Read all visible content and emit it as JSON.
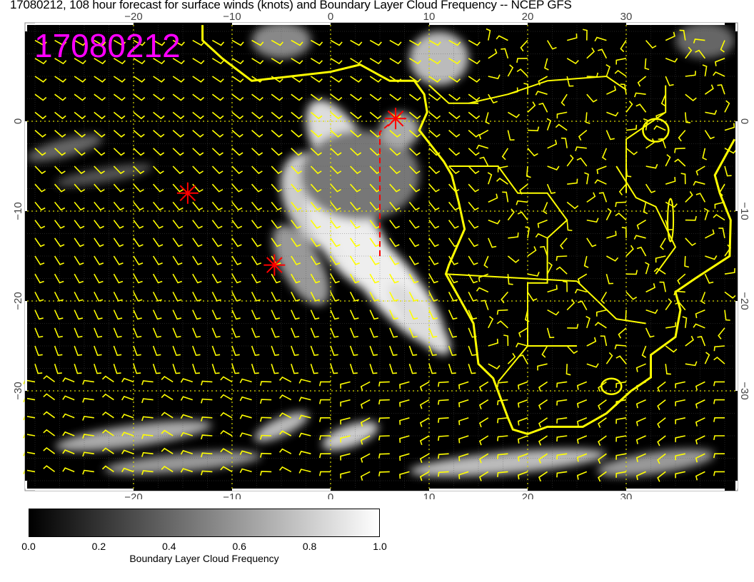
{
  "title": "17080212, 108 hour forecast for surface winds (knots) and Boundary Layer Cloud Frequency -- NCEP GFS",
  "stamp": "17080212",
  "map": {
    "lon_range": [
      -31,
      41
    ],
    "lat_range": [
      -41,
      10.7
    ],
    "lon_ticks": [
      -20,
      -10,
      0,
      10,
      20,
      30
    ],
    "lat_ticks": [
      0,
      -10,
      -20,
      -30
    ],
    "markers": [
      {
        "lon": -14.5,
        "lat": -8
      },
      {
        "lon": -5.7,
        "lat": -16
      },
      {
        "lon": 6.6,
        "lat": 0.3
      }
    ],
    "track": [
      [
        5,
        -15
      ],
      [
        5,
        -1.2
      ],
      [
        6.6,
        0.3
      ]
    ],
    "colors": {
      "coast": "#ffff00",
      "barbs": "#ffff00",
      "marker": "#ff0000",
      "stamp": "#ff00ff",
      "background": "#000000"
    }
  },
  "colorbar": {
    "ticks": [
      "0.0",
      "0.2",
      "0.4",
      "0.6",
      "0.8",
      "1.0"
    ],
    "range": [
      0,
      1
    ],
    "label": "Boundary Layer Cloud Frequency"
  }
}
